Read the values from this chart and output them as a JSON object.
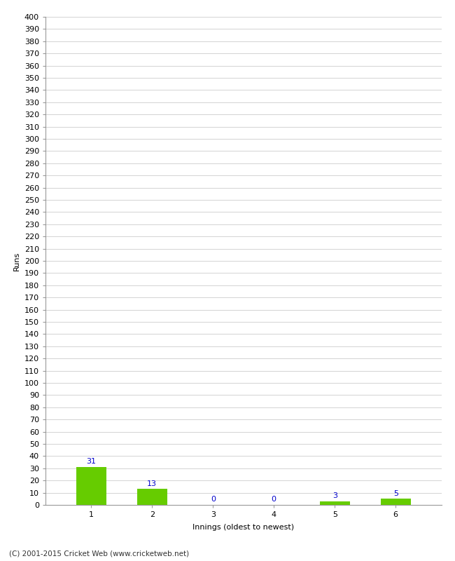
{
  "categories": [
    "1",
    "2",
    "3",
    "4",
    "5",
    "6"
  ],
  "values": [
    31,
    13,
    0,
    0,
    3,
    5
  ],
  "bar_color": "#66cc00",
  "label_color": "#0000cc",
  "ylabel": "Runs",
  "xlabel": "Innings (oldest to newest)",
  "ylim": [
    0,
    400
  ],
  "ytick_step": 10,
  "background_color": "#ffffff",
  "grid_color": "#cccccc",
  "footer": "(C) 2001-2015 Cricket Web (www.cricketweb.net)",
  "tick_label_fontsize": 8,
  "axis_label_fontsize": 8,
  "value_label_fontsize": 8
}
